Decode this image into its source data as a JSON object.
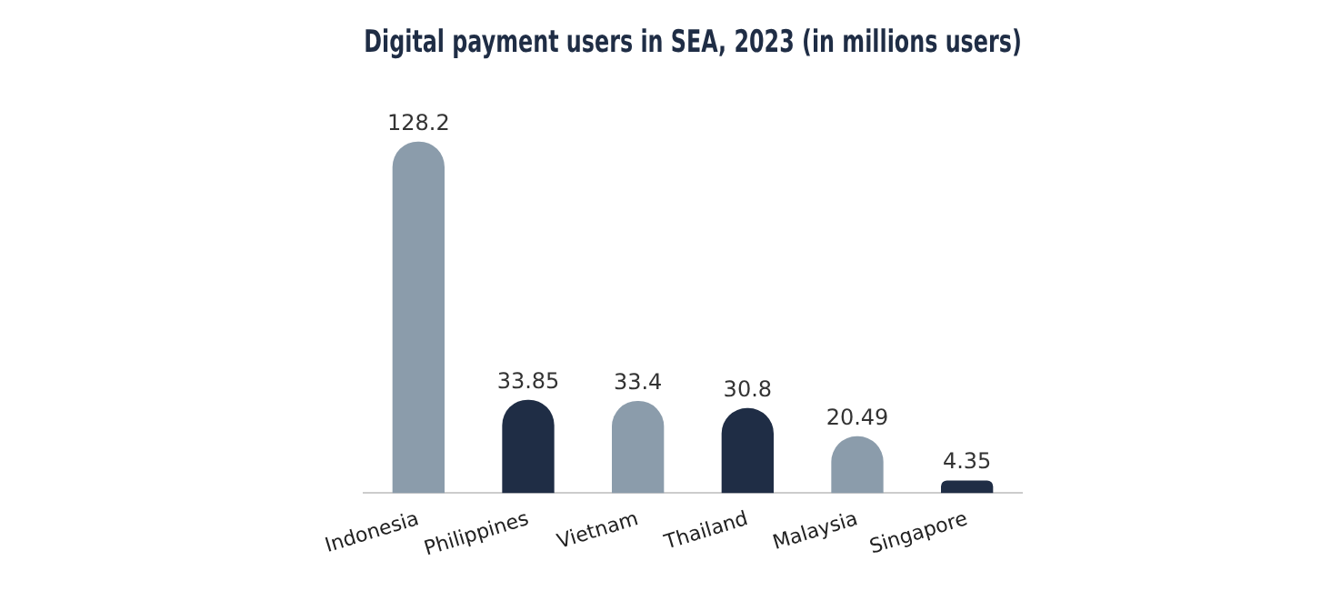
{
  "chart_data": {
    "type": "bar",
    "title": "Digital payment users in SEA, 2023 (in millions users)",
    "categories": [
      "Indonesia",
      "Philippines",
      "Vietnam",
      "Thailand",
      "Malaysia",
      "Singapore"
    ],
    "values": [
      128.2,
      33.85,
      33.4,
      30.8,
      20.49,
      4.35
    ],
    "colors": [
      "#8b9cab",
      "#1f2d45",
      "#8b9cab",
      "#1f2d45",
      "#8b9cab",
      "#1f2d45"
    ],
    "data_labels": true,
    "grid": false,
    "legend": false
  }
}
